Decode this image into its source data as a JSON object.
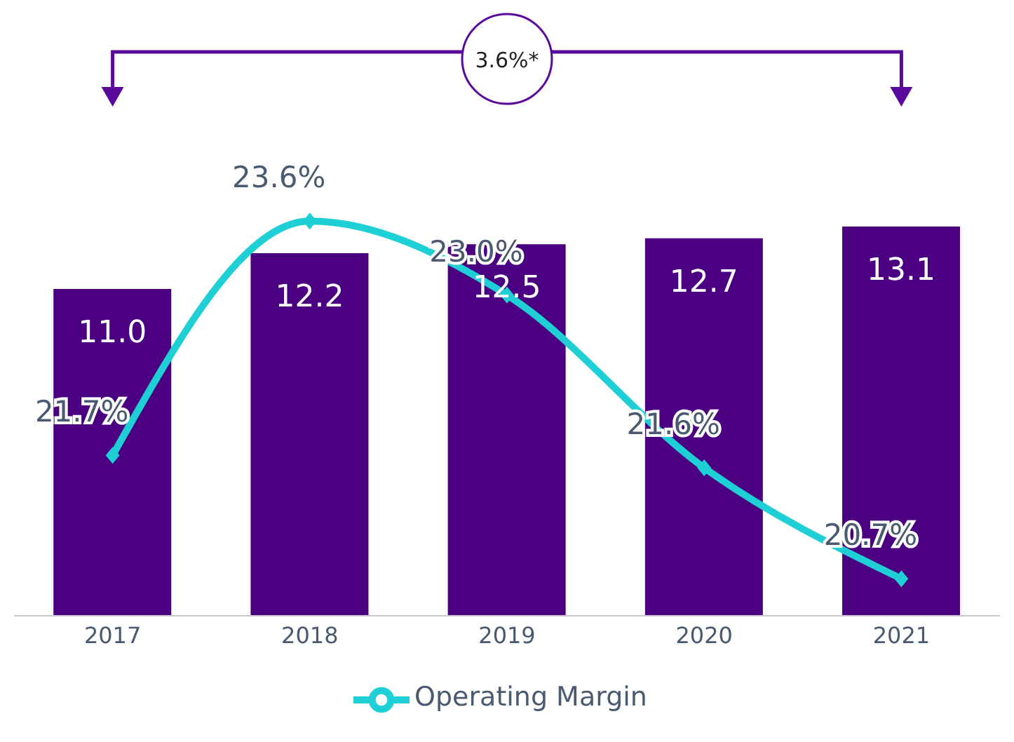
{
  "chart_data": {
    "type": "bar",
    "categories": [
      "2017",
      "2018",
      "2019",
      "2020",
      "2021"
    ],
    "series": [
      {
        "color": "#4b0082",
        "values": [
          11.0,
          12.2,
          12.5,
          12.7,
          13.1
        ],
        "value_labels": [
          "11.0",
          "12.2",
          "12.5",
          "12.7",
          "13.1"
        ]
      },
      {
        "type": "line",
        "axis": "y2",
        "name": "Operating Margin",
        "color": "#1fcfd6",
        "values": [
          21.7,
          23.6,
          23.0,
          21.6,
          20.7
        ],
        "value_labels": [
          "21.7%",
          "23.6%",
          "23.0%",
          "21.6%",
          "20.7%"
        ]
      }
    ],
    "tick_labels": "x",
    "legend": "bottom",
    "marker": "diamond",
    "annotations": [
      "3.6%*"
    ]
  }
}
